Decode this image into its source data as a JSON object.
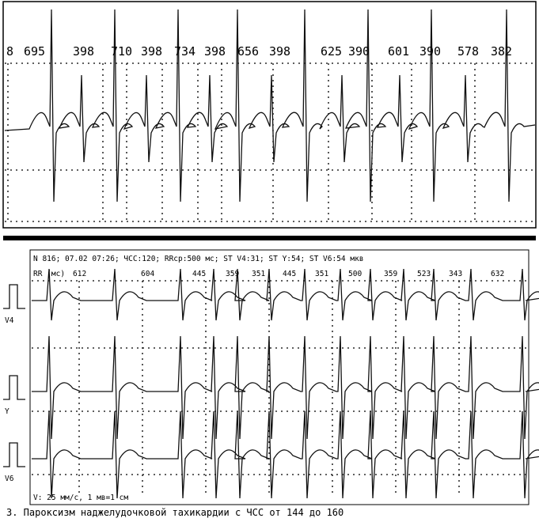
{
  "top_strip": {
    "rr_labels": [
      "8",
      "695",
      "398",
      "710",
      "398",
      "734",
      "398",
      "656",
      "398",
      "625",
      "390",
      "601",
      "390",
      "578",
      "382"
    ]
  },
  "bottom_strip": {
    "header": "N 816; 07.02 07:26; ЧСС:120; RRср:500 мс; ST V4:31; ST Y:54; ST V6:54 мкв",
    "rr_title": "RR (мс)",
    "rr_labels": [
      "612",
      "604",
      "445",
      "359",
      "351",
      "445",
      "351",
      "500",
      "359",
      "523",
      "343",
      "632"
    ],
    "leads": [
      "V4",
      "Y",
      "V6"
    ],
    "footer": "V: 25 мм/с, 1 мв=1 см"
  },
  "caption": "3. Пароксизм наджелудочковой тахикардии с ЧСС от 144 до 160"
}
